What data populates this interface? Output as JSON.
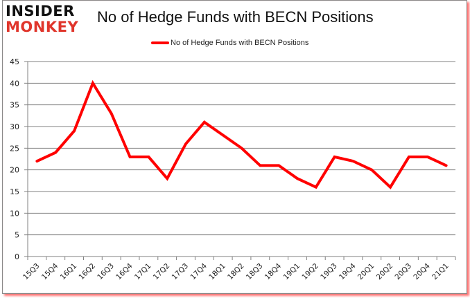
{
  "logo": {
    "line1": "INSIDER",
    "line2": "MONKEY"
  },
  "title": "No of Hedge Funds with BECN Positions",
  "legend": {
    "label": "No of Hedge Funds with BECN Positions",
    "color": "#ff0000"
  },
  "colors": {
    "series": "#ff0000",
    "grid": "#808080",
    "axis": "#808080",
    "text": "#222222",
    "logo_red": "#e0352b"
  },
  "chart_data": {
    "type": "line",
    "title": "No of Hedge Funds with BECN Positions",
    "xlabel": "",
    "ylabel": "",
    "ylim": [
      0,
      45
    ],
    "yticks": [
      0,
      5,
      10,
      15,
      20,
      25,
      30,
      35,
      40,
      45
    ],
    "grid": true,
    "legend_position": "top",
    "categories": [
      "15Q3",
      "15Q4",
      "16Q1",
      "16Q2",
      "16Q3",
      "16Q4",
      "17Q1",
      "17Q2",
      "17Q3",
      "17Q4",
      "18Q1",
      "18Q2",
      "18Q3",
      "18Q4",
      "19Q1",
      "19Q2",
      "19Q3",
      "19Q4",
      "20Q1",
      "20Q2",
      "20Q3",
      "20Q4",
      "21Q1"
    ],
    "series": [
      {
        "name": "No of Hedge Funds with BECN Positions",
        "values": [
          22,
          24,
          29,
          40,
          33,
          23,
          23,
          18,
          26,
          31,
          28,
          25,
          21,
          21,
          18,
          16,
          23,
          22,
          20,
          16,
          23,
          23,
          21
        ]
      }
    ]
  }
}
